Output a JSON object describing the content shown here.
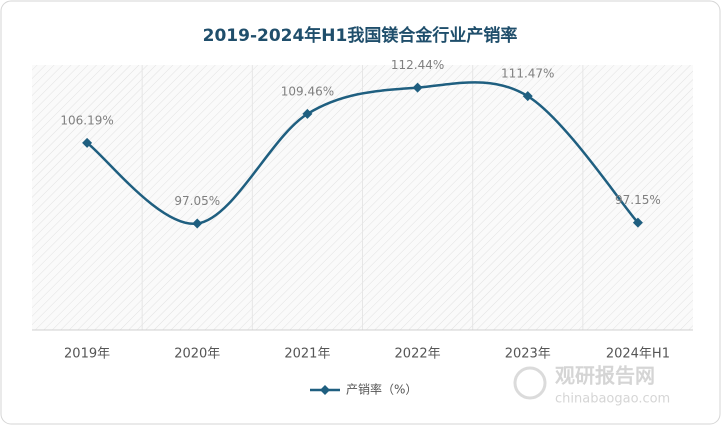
{
  "chart_data": {
    "type": "line",
    "title": "2019-2024年H1我国镁合金行业产销率",
    "categories": [
      "2019年",
      "2020年",
      "2021年",
      "2022年",
      "2023年",
      "2024年H1"
    ],
    "series": [
      {
        "name": "产销率（%）",
        "color": "#1f5f80",
        "values": [
          106.19,
          97.05,
          109.46,
          112.44,
          111.47,
          97.15
        ],
        "value_labels": [
          "106.19%",
          "97.05%",
          "109.46%",
          "112.44%",
          "111.47%",
          "97.15%"
        ]
      }
    ],
    "ylim": [
      85,
      115
    ],
    "smooth": true,
    "legend": "bottom",
    "watermark": {
      "name": "观研报告网",
      "url": "chinabaogao.com"
    }
  }
}
